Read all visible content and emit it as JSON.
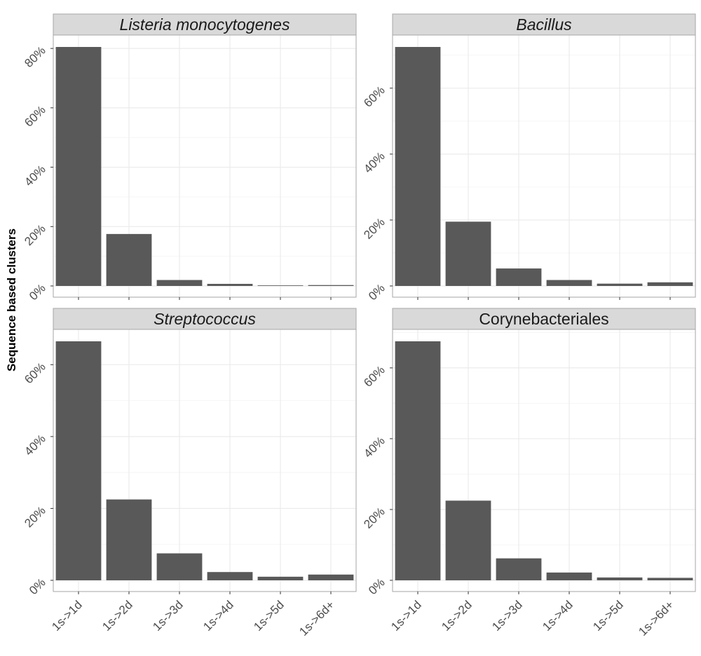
{
  "figure": {
    "ylabel": "Sequence based clusters"
  },
  "chart_data": [
    {
      "type": "bar",
      "title": "Listeria monocytogenes",
      "title_italic": true,
      "categories": [
        "1s->1d",
        "1s->2d",
        "1s->3d",
        "1s->4d",
        "1s->5d",
        "1s->6d+"
      ],
      "values": [
        80.5,
        17.5,
        2.0,
        0.7,
        0.2,
        0.3
      ],
      "yticks": [
        0,
        20,
        40,
        60,
        80
      ],
      "ytick_labels": [
        "0%",
        "20%",
        "40%",
        "60%",
        "80%"
      ],
      "ylim": [
        0,
        84
      ],
      "grid": true
    },
    {
      "type": "bar",
      "title": "Bacillus",
      "title_italic": true,
      "categories": [
        "1s->1d",
        "1s->2d",
        "1s->3d",
        "1s->4d",
        "1s->5d",
        "1s->6d+"
      ],
      "values": [
        72.5,
        19.5,
        5.3,
        1.8,
        0.7,
        1.1
      ],
      "yticks": [
        0,
        20,
        40,
        60
      ],
      "ytick_labels": [
        "0%",
        "20%",
        "40%",
        "60%"
      ],
      "ylim": [
        0,
        76
      ],
      "grid": true
    },
    {
      "type": "bar",
      "title": "Streptococcus",
      "title_italic": true,
      "categories": [
        "1s->1d",
        "1s->2d",
        "1s->3d",
        "1s->4d",
        "1s->5d",
        "1s->6d+"
      ],
      "values": [
        66.5,
        22.5,
        7.5,
        2.3,
        1.0,
        1.6
      ],
      "yticks": [
        0,
        20,
        40,
        60
      ],
      "ytick_labels": [
        "0%",
        "20%",
        "40%",
        "60%"
      ],
      "ylim": [
        0,
        70
      ],
      "grid": true
    },
    {
      "type": "bar",
      "title": "Corynebacteriales",
      "title_italic": false,
      "categories": [
        "1s->1d",
        "1s->2d",
        "1s->3d",
        "1s->4d",
        "1s->5d",
        "1s->6d+"
      ],
      "values": [
        67.5,
        22.5,
        6.2,
        2.2,
        0.8,
        0.7
      ],
      "yticks": [
        0,
        20,
        40,
        60
      ],
      "ytick_labels": [
        "0%",
        "20%",
        "40%",
        "60%"
      ],
      "ylim": [
        0,
        71
      ],
      "grid": true
    }
  ],
  "colors": {
    "bar": "#595959",
    "strip": "#d9d9d9",
    "panel_border": "#a6a6a6",
    "grid": "#ebebeb",
    "tick_text": "#4d4d4d"
  }
}
